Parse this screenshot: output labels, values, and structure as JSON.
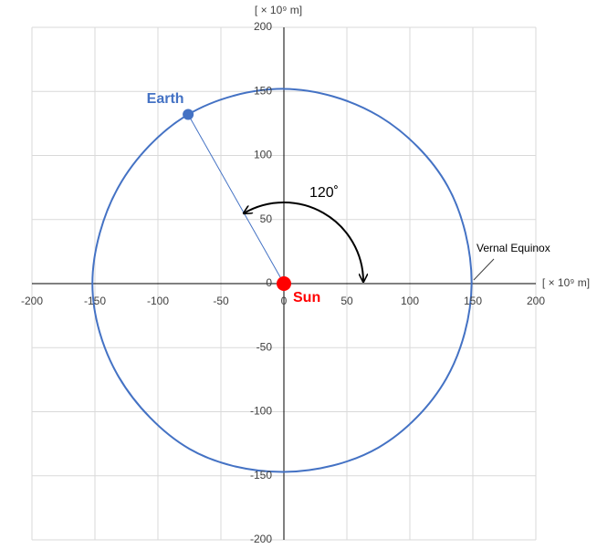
{
  "chart_data": {
    "type": "scatter",
    "xlabel": "[ × 10⁹ m]",
    "ylabel": "[ × 10⁹ m]",
    "xlim": [
      -200,
      200
    ],
    "ylim": [
      -200,
      200
    ],
    "xticks": [
      -200,
      -150,
      -100,
      -50,
      0,
      50,
      100,
      150,
      200
    ],
    "yticks": [
      -200,
      -150,
      -100,
      -50,
      0,
      50,
      100,
      150,
      200
    ],
    "grid": true,
    "series": [
      {
        "name": "Earth",
        "color": "#4472c4",
        "x": [
          -76
        ],
        "y": [
          132
        ]
      },
      {
        "name": "Sun",
        "color": "#ff0000",
        "x": [
          0
        ],
        "y": [
          0
        ]
      }
    ],
    "orbit": {
      "color": "#4472c4",
      "x": [
        149,
        130,
        75,
        0,
        -76,
        -131,
        -152,
        -131,
        -75,
        0,
        75,
        129,
        149
      ],
      "y": [
        0,
        76,
        131,
        152,
        132,
        76,
        0,
        -73,
        -129,
        -147,
        -128,
        -74,
        0
      ]
    },
    "angle_label": "120˚",
    "equinox_label": "Vernal Equinox"
  }
}
